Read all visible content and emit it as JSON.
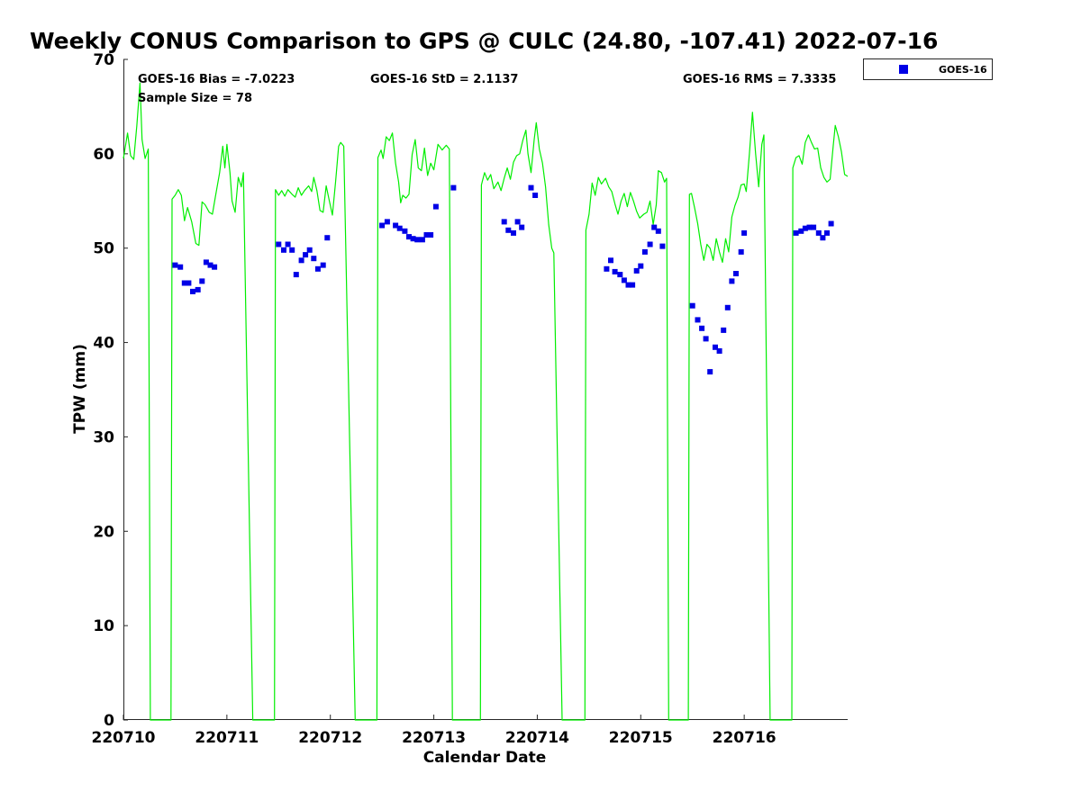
{
  "chart_data": {
    "type": "scatter",
    "title": "Weekly CONUS Comparison to GPS @ CULC (24.80, -107.41) 2022-07-16",
    "xlabel": "Calendar Date",
    "ylabel": "TPW (mm)",
    "xlim": [
      0,
      7
    ],
    "ylim": [
      0,
      70
    ],
    "x_tick_values": [
      0,
      1,
      2,
      3,
      4,
      5,
      6
    ],
    "x_tick_labels": [
      "220710",
      "220711",
      "220712",
      "220713",
      "220714",
      "220715",
      "220716"
    ],
    "y_ticks": [
      0,
      10,
      20,
      30,
      40,
      50,
      60,
      70
    ],
    "grid": false,
    "legend_position": "top-right, outside plot",
    "stats": {
      "bias": "GOES-16 Bias = -7.0223",
      "sample": "Sample Size = 78",
      "std": "GOES-16 StD = 2.1137",
      "rms": "GOES-16 RMS = 7.3335"
    },
    "series": [
      {
        "name": "GOES-16",
        "kind": "scatter",
        "marker": "square",
        "color": "#0000e6",
        "points": [
          [
            0.5,
            48.2
          ],
          [
            0.55,
            48.0
          ],
          [
            0.59,
            46.3
          ],
          [
            0.63,
            46.3
          ],
          [
            0.67,
            45.4
          ],
          [
            0.72,
            45.6
          ],
          [
            0.76,
            46.5
          ],
          [
            0.8,
            48.5
          ],
          [
            0.84,
            48.2
          ],
          [
            0.88,
            48.0
          ],
          [
            1.5,
            50.4
          ],
          [
            1.55,
            49.8
          ],
          [
            1.59,
            50.4
          ],
          [
            1.63,
            49.8
          ],
          [
            1.67,
            47.2
          ],
          [
            1.72,
            48.7
          ],
          [
            1.76,
            49.3
          ],
          [
            1.8,
            49.8
          ],
          [
            1.84,
            48.9
          ],
          [
            1.88,
            47.8
          ],
          [
            1.93,
            48.2
          ],
          [
            1.97,
            51.1
          ],
          [
            2.5,
            52.4
          ],
          [
            2.55,
            52.8
          ],
          [
            2.63,
            52.4
          ],
          [
            2.67,
            52.1
          ],
          [
            2.72,
            51.8
          ],
          [
            2.76,
            51.2
          ],
          [
            2.8,
            51.0
          ],
          [
            2.84,
            50.9
          ],
          [
            2.89,
            50.9
          ],
          [
            2.93,
            51.4
          ],
          [
            2.97,
            51.4
          ],
          [
            3.02,
            54.4
          ],
          [
            3.19,
            56.4
          ],
          [
            3.68,
            52.8
          ],
          [
            3.72,
            51.9
          ],
          [
            3.77,
            51.6
          ],
          [
            3.81,
            52.8
          ],
          [
            3.85,
            52.2
          ],
          [
            3.94,
            56.4
          ],
          [
            3.98,
            55.6
          ],
          [
            4.67,
            47.8
          ],
          [
            4.71,
            48.7
          ],
          [
            4.75,
            47.5
          ],
          [
            4.8,
            47.2
          ],
          [
            4.84,
            46.6
          ],
          [
            4.88,
            46.1
          ],
          [
            4.92,
            46.1
          ],
          [
            4.96,
            47.6
          ],
          [
            5.0,
            48.1
          ],
          [
            5.04,
            49.6
          ],
          [
            5.09,
            50.4
          ],
          [
            5.13,
            52.2
          ],
          [
            5.17,
            51.8
          ],
          [
            5.21,
            50.2
          ],
          [
            5.5,
            43.9
          ],
          [
            5.55,
            42.4
          ],
          [
            5.59,
            41.5
          ],
          [
            5.63,
            40.4
          ],
          [
            5.67,
            36.9
          ],
          [
            5.72,
            39.5
          ],
          [
            5.76,
            39.1
          ],
          [
            5.8,
            41.3
          ],
          [
            5.84,
            43.7
          ],
          [
            5.88,
            46.5
          ],
          [
            5.92,
            47.3
          ],
          [
            5.97,
            49.6
          ],
          [
            6.0,
            51.6
          ],
          [
            6.5,
            51.6
          ],
          [
            6.55,
            51.8
          ],
          [
            6.59,
            52.1
          ],
          [
            6.63,
            52.2
          ],
          [
            6.67,
            52.2
          ],
          [
            6.72,
            51.6
          ],
          [
            6.76,
            51.1
          ],
          [
            6.8,
            51.6
          ],
          [
            6.84,
            52.6
          ]
        ]
      },
      {
        "name": "",
        "kind": "line",
        "color": "#00ee00",
        "points": [
          [
            0.0,
            59.5
          ],
          [
            0.04,
            62.2
          ],
          [
            0.07,
            59.8
          ],
          [
            0.1,
            59.4
          ],
          [
            0.13,
            63.0
          ],
          [
            0.16,
            67.5
          ],
          [
            0.18,
            61.5
          ],
          [
            0.21,
            59.5
          ],
          [
            0.24,
            60.5
          ],
          [
            0.26,
            0
          ],
          [
            0.46,
            0
          ],
          [
            0.47,
            55.2
          ],
          [
            0.5,
            55.6
          ],
          [
            0.53,
            56.2
          ],
          [
            0.56,
            55.6
          ],
          [
            0.59,
            52.9
          ],
          [
            0.62,
            54.3
          ],
          [
            0.66,
            52.8
          ],
          [
            0.7,
            50.5
          ],
          [
            0.73,
            50.3
          ],
          [
            0.76,
            54.9
          ],
          [
            0.79,
            54.6
          ],
          [
            0.83,
            53.8
          ],
          [
            0.86,
            53.6
          ],
          [
            0.89,
            55.5
          ],
          [
            0.93,
            58.0
          ],
          [
            0.96,
            60.8
          ],
          [
            0.98,
            58.5
          ],
          [
            1.0,
            61.0
          ],
          [
            1.03,
            58.0
          ],
          [
            1.05,
            55.0
          ],
          [
            1.08,
            53.8
          ],
          [
            1.11,
            57.5
          ],
          [
            1.14,
            56.5
          ],
          [
            1.16,
            58.0
          ],
          [
            1.25,
            0
          ],
          [
            1.46,
            0
          ],
          [
            1.47,
            56.2
          ],
          [
            1.5,
            55.6
          ],
          [
            1.53,
            56.1
          ],
          [
            1.56,
            55.5
          ],
          [
            1.59,
            56.2
          ],
          [
            1.63,
            55.7
          ],
          [
            1.66,
            55.4
          ],
          [
            1.69,
            56.4
          ],
          [
            1.72,
            55.6
          ],
          [
            1.75,
            56.1
          ],
          [
            1.79,
            56.6
          ],
          [
            1.82,
            56.0
          ],
          [
            1.84,
            57.5
          ],
          [
            1.87,
            56.1
          ],
          [
            1.9,
            54.0
          ],
          [
            1.93,
            53.8
          ],
          [
            1.96,
            56.6
          ],
          [
            1.99,
            55.0
          ],
          [
            2.02,
            53.5
          ],
          [
            2.05,
            57.0
          ],
          [
            2.08,
            60.8
          ],
          [
            2.1,
            61.2
          ],
          [
            2.13,
            60.8
          ],
          [
            2.24,
            0
          ],
          [
            2.45,
            0
          ],
          [
            2.46,
            59.6
          ],
          [
            2.49,
            60.4
          ],
          [
            2.51,
            59.5
          ],
          [
            2.54,
            61.8
          ],
          [
            2.57,
            61.4
          ],
          [
            2.6,
            62.2
          ],
          [
            2.63,
            59.0
          ],
          [
            2.66,
            57.0
          ],
          [
            2.68,
            54.8
          ],
          [
            2.7,
            55.6
          ],
          [
            2.73,
            55.3
          ],
          [
            2.76,
            55.7
          ],
          [
            2.79,
            59.9
          ],
          [
            2.82,
            61.5
          ],
          [
            2.85,
            58.5
          ],
          [
            2.88,
            58.2
          ],
          [
            2.91,
            60.6
          ],
          [
            2.94,
            57.7
          ],
          [
            2.97,
            59.0
          ],
          [
            3.0,
            58.3
          ],
          [
            3.04,
            61.0
          ],
          [
            3.08,
            60.4
          ],
          [
            3.12,
            60.9
          ],
          [
            3.15,
            60.5
          ],
          [
            3.18,
            0
          ],
          [
            3.45,
            0
          ],
          [
            3.46,
            56.7
          ],
          [
            3.49,
            58.0
          ],
          [
            3.52,
            57.2
          ],
          [
            3.55,
            57.8
          ],
          [
            3.58,
            56.3
          ],
          [
            3.62,
            57.0
          ],
          [
            3.65,
            56.1
          ],
          [
            3.68,
            57.4
          ],
          [
            3.71,
            58.5
          ],
          [
            3.74,
            57.3
          ],
          [
            3.77,
            59.1
          ],
          [
            3.8,
            59.8
          ],
          [
            3.83,
            60.0
          ],
          [
            3.86,
            61.4
          ],
          [
            3.89,
            62.5
          ],
          [
            3.91,
            60.0
          ],
          [
            3.94,
            58.0
          ],
          [
            3.97,
            61.5
          ],
          [
            3.99,
            63.3
          ],
          [
            4.02,
            60.5
          ],
          [
            4.05,
            59.0
          ],
          [
            4.08,
            56.5
          ],
          [
            4.11,
            52.5
          ],
          [
            4.14,
            50.0
          ],
          [
            4.16,
            49.5
          ],
          [
            4.24,
            0
          ],
          [
            4.46,
            0
          ],
          [
            4.47,
            51.9
          ],
          [
            4.5,
            53.6
          ],
          [
            4.53,
            56.9
          ],
          [
            4.56,
            55.6
          ],
          [
            4.59,
            57.5
          ],
          [
            4.62,
            56.8
          ],
          [
            4.66,
            57.4
          ],
          [
            4.69,
            56.5
          ],
          [
            4.72,
            56.0
          ],
          [
            4.75,
            54.7
          ],
          [
            4.78,
            53.6
          ],
          [
            4.81,
            55.0
          ],
          [
            4.84,
            55.8
          ],
          [
            4.87,
            54.4
          ],
          [
            4.9,
            55.9
          ],
          [
            4.93,
            55.0
          ],
          [
            4.96,
            53.9
          ],
          [
            4.99,
            53.2
          ],
          [
            5.03,
            53.6
          ],
          [
            5.06,
            53.8
          ],
          [
            5.09,
            55.0
          ],
          [
            5.12,
            52.5
          ],
          [
            5.15,
            54.6
          ],
          [
            5.17,
            58.2
          ],
          [
            5.2,
            58.0
          ],
          [
            5.23,
            57.0
          ],
          [
            5.25,
            57.4
          ],
          [
            5.27,
            0
          ],
          [
            5.46,
            0
          ],
          [
            5.47,
            55.7
          ],
          [
            5.49,
            55.8
          ],
          [
            5.52,
            54.3
          ],
          [
            5.55,
            52.6
          ],
          [
            5.58,
            50.4
          ],
          [
            5.61,
            48.7
          ],
          [
            5.64,
            50.4
          ],
          [
            5.67,
            50.0
          ],
          [
            5.7,
            48.7
          ],
          [
            5.73,
            51.0
          ],
          [
            5.76,
            49.6
          ],
          [
            5.79,
            48.5
          ],
          [
            5.82,
            51.0
          ],
          [
            5.85,
            49.6
          ],
          [
            5.88,
            53.3
          ],
          [
            5.91,
            54.5
          ],
          [
            5.94,
            55.4
          ],
          [
            5.97,
            56.7
          ],
          [
            6.0,
            56.8
          ],
          [
            6.02,
            56.0
          ],
          [
            6.05,
            60.0
          ],
          [
            6.08,
            64.4
          ],
          [
            6.11,
            60.0
          ],
          [
            6.14,
            56.5
          ],
          [
            6.17,
            61.0
          ],
          [
            6.19,
            62.0
          ],
          [
            6.25,
            0
          ],
          [
            6.46,
            0
          ],
          [
            6.47,
            58.5
          ],
          [
            6.5,
            59.6
          ],
          [
            6.53,
            59.8
          ],
          [
            6.56,
            58.9
          ],
          [
            6.59,
            61.2
          ],
          [
            6.62,
            62.0
          ],
          [
            6.65,
            61.2
          ],
          [
            6.68,
            60.5
          ],
          [
            6.71,
            60.6
          ],
          [
            6.74,
            58.5
          ],
          [
            6.77,
            57.5
          ],
          [
            6.8,
            57.0
          ],
          [
            6.83,
            57.3
          ],
          [
            6.86,
            60.8
          ],
          [
            6.88,
            63.0
          ],
          [
            6.91,
            61.8
          ],
          [
            6.94,
            60.2
          ],
          [
            6.97,
            57.8
          ],
          [
            7.0,
            57.6
          ]
        ]
      }
    ]
  }
}
